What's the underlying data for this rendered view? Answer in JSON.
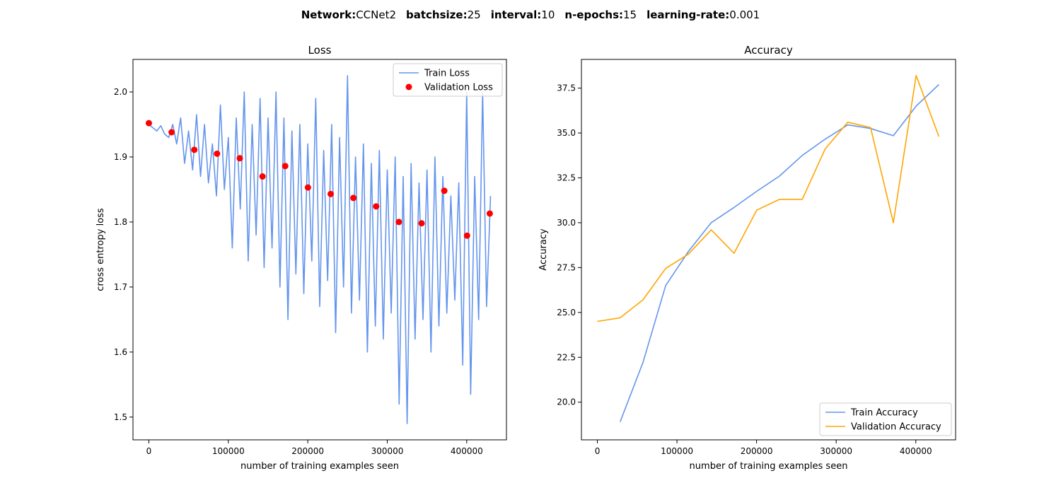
{
  "suptitle": {
    "items": [
      {
        "key": "Network",
        "value": "CCNet2"
      },
      {
        "key": "batchsize",
        "value": "25"
      },
      {
        "key": "interval",
        "value": "10"
      },
      {
        "key": "n-epochs",
        "value": "15"
      },
      {
        "key": "learning-rate",
        "value": "0.001"
      }
    ]
  },
  "chart_data": [
    {
      "type": "line",
      "title": "Loss",
      "xlabel": "number of training examples seen",
      "ylabel": "cross entropy loss",
      "xlim": [
        -20000,
        450000
      ],
      "ylim": [
        1.465,
        2.05
      ],
      "xticks": [
        0,
        100000,
        200000,
        300000,
        400000
      ],
      "xtick_labels": [
        "0",
        "100000",
        "200000",
        "300000",
        "400000"
      ],
      "yticks": [
        1.5,
        1.6,
        1.7,
        1.8,
        1.9,
        2.0
      ],
      "ytick_labels": [
        "1.5",
        "1.6",
        "1.7",
        "1.8",
        "1.9",
        "2.0"
      ],
      "grid": false,
      "legend": "top-right",
      "series": [
        {
          "name": "Train Loss",
          "kind": "line",
          "color": "#6495ED",
          "x": [
            0,
            5000,
            10000,
            15000,
            20000,
            25000,
            30000,
            35000,
            40000,
            45000,
            50000,
            55000,
            60000,
            65000,
            70000,
            75000,
            80000,
            85000,
            90000,
            95000,
            100000,
            105000,
            110000,
            115000,
            120000,
            125000,
            130000,
            135000,
            140000,
            145000,
            150000,
            155000,
            160000,
            165000,
            170000,
            175000,
            180000,
            185000,
            190000,
            195000,
            200000,
            205000,
            210000,
            215000,
            220000,
            225000,
            230000,
            235000,
            240000,
            245000,
            250000,
            255000,
            260000,
            265000,
            270000,
            275000,
            280000,
            285000,
            290000,
            295000,
            300000,
            305000,
            310000,
            315000,
            320000,
            325000,
            330000,
            335000,
            340000,
            345000,
            350000,
            355000,
            360000,
            365000,
            370000,
            375000,
            380000,
            385000,
            390000,
            395000,
            400000,
            405000,
            410000,
            415000,
            420000,
            425000,
            430000
          ],
          "y": [
            1.95,
            1.945,
            1.94,
            1.948,
            1.935,
            1.93,
            1.95,
            1.92,
            1.96,
            1.89,
            1.94,
            1.88,
            1.965,
            1.87,
            1.95,
            1.86,
            1.92,
            1.84,
            1.98,
            1.85,
            1.93,
            1.76,
            1.96,
            1.82,
            2.0,
            1.74,
            1.95,
            1.78,
            1.99,
            1.73,
            1.96,
            1.76,
            2.0,
            1.7,
            1.96,
            1.65,
            1.94,
            1.72,
            1.95,
            1.69,
            1.92,
            1.74,
            1.99,
            1.67,
            1.91,
            1.71,
            1.95,
            1.63,
            1.93,
            1.7,
            2.025,
            1.66,
            1.9,
            1.68,
            1.92,
            1.6,
            1.89,
            1.64,
            1.91,
            1.62,
            1.88,
            1.66,
            1.9,
            1.52,
            1.87,
            1.49,
            1.89,
            1.62,
            1.86,
            1.65,
            1.88,
            1.6,
            1.9,
            1.64,
            1.87,
            1.66,
            1.84,
            1.68,
            1.86,
            1.58,
            2.0,
            1.535,
            1.87,
            1.65,
            2.0,
            1.67,
            1.84
          ]
        },
        {
          "name": "Validation Loss",
          "kind": "scatter",
          "color": "#ff0000",
          "x": [
            0,
            28600,
            57200,
            85800,
            114400,
            143000,
            171600,
            200200,
            228800,
            257400,
            286000,
            314600,
            343200,
            371800,
            400400,
            429000
          ],
          "y": [
            1.952,
            1.938,
            1.911,
            1.905,
            1.898,
            1.87,
            1.886,
            1.853,
            1.843,
            1.837,
            1.824,
            1.8,
            1.798,
            1.848,
            1.779,
            1.813
          ]
        }
      ]
    },
    {
      "type": "line",
      "title": "Accuracy",
      "xlabel": "number of training examples seen",
      "ylabel": "Accuracy",
      "xlim": [
        -20000,
        450000
      ],
      "ylim": [
        17.9,
        39.1
      ],
      "xticks": [
        0,
        100000,
        200000,
        300000,
        400000
      ],
      "xtick_labels": [
        "0",
        "100000",
        "200000",
        "300000",
        "400000"
      ],
      "yticks": [
        20.0,
        22.5,
        25.0,
        27.5,
        30.0,
        32.5,
        35.0,
        37.5
      ],
      "ytick_labels": [
        "20.0",
        "22.5",
        "25.0",
        "27.5",
        "30.0",
        "32.5",
        "35.0",
        "37.5"
      ],
      "grid": false,
      "legend": "bottom-right",
      "series": [
        {
          "name": "Train Accuracy",
          "kind": "line",
          "color": "#6495ED",
          "x": [
            28600,
            57200,
            85800,
            114400,
            143000,
            171600,
            200200,
            228800,
            257400,
            286000,
            314600,
            343200,
            371800,
            400400,
            429000
          ],
          "y": [
            18.9,
            22.2,
            26.5,
            28.4,
            30.0,
            30.85,
            31.75,
            32.6,
            33.75,
            34.65,
            35.45,
            35.25,
            34.85,
            36.5,
            37.7
          ]
        },
        {
          "name": "Validation Accuracy",
          "kind": "line",
          "color": "#FFA500",
          "x": [
            0,
            28600,
            57200,
            85800,
            114400,
            143000,
            171600,
            200200,
            228800,
            257400,
            286000,
            314600,
            343200,
            371800,
            400400,
            429000
          ],
          "y": [
            24.5,
            24.7,
            25.7,
            27.45,
            28.25,
            29.6,
            28.3,
            30.7,
            31.3,
            31.3,
            34.1,
            35.6,
            35.3,
            30.0,
            38.2,
            34.8
          ]
        }
      ]
    }
  ]
}
